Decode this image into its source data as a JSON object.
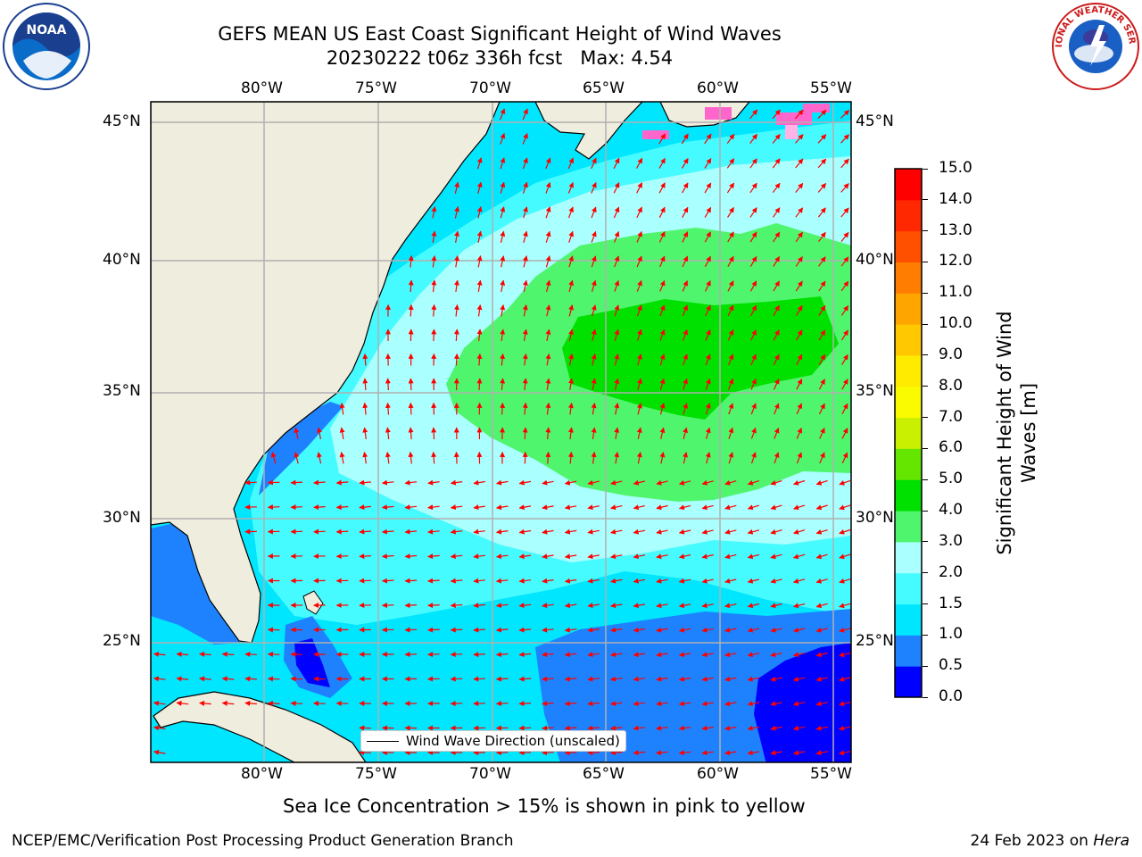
{
  "title": {
    "line1": "GEFS MEAN US East Coast Significant Height of Wind Waves",
    "line2": "20230222 t06z 336h fcst   Max: 4.54"
  },
  "axes": {
    "lon_ticks": [
      "80°W",
      "75°W",
      "70°W",
      "65°W",
      "60°W",
      "55°W"
    ],
    "lat_ticks": [
      "45°N",
      "40°N",
      "35°N",
      "30°N",
      "25°N"
    ],
    "lon_range": [
      -85,
      -54
    ],
    "lat_range": [
      20.5,
      46.3
    ]
  },
  "colorbar": {
    "label": "Significant Height of Wind Waves [m]",
    "label_line1": "Significant Height of Wind",
    "label_line2": "Waves [m]",
    "ticks": [
      "0.0",
      "0.5",
      "1.0",
      "1.5",
      "2.0",
      "3.0",
      "4.0",
      "5.0",
      "6.0",
      "7.0",
      "8.0",
      "9.0",
      "10.0",
      "11.0",
      "12.0",
      "13.0",
      "14.0",
      "15.0"
    ],
    "colors": [
      "#0000ff",
      "#1e82ff",
      "#00e6ff",
      "#46fbff",
      "#aaffff",
      "#50f56e",
      "#00e100",
      "#64e600",
      "#c8f000",
      "#fafa00",
      "#ffeb00",
      "#ffc800",
      "#ffa500",
      "#ff7d00",
      "#ff5000",
      "#ff2800",
      "#ff0000"
    ]
  },
  "legend": {
    "label": "Wind Wave Direction (unscaled)"
  },
  "note": "Sea Ice Concentration > 15% is shown in pink to yellow",
  "footer": {
    "left": "NCEP/EMC/Verification Post Processing Product Generation Branch",
    "right_prefix": "24 Feb 2023 on ",
    "right_host": "Hera"
  },
  "logos": {
    "noaa": "NOAA",
    "nws": "NATIONAL WEATHER SERVICE"
  },
  "map_colors": {
    "land": "#efedde",
    "ocean_base": "#00e6ff",
    "band_0_0.5": "#0000ff",
    "band_0.5_1": "#1e82ff",
    "band_1_1.5": "#00e6ff",
    "band_1.5_2": "#46fbff",
    "band_2_3": "#aaffff",
    "band_3_4": "#50f56e",
    "band_4_5": "#00e100",
    "arrow": "#ff0000",
    "grid": "#b0b0b0",
    "ice": "#ff66cc"
  }
}
